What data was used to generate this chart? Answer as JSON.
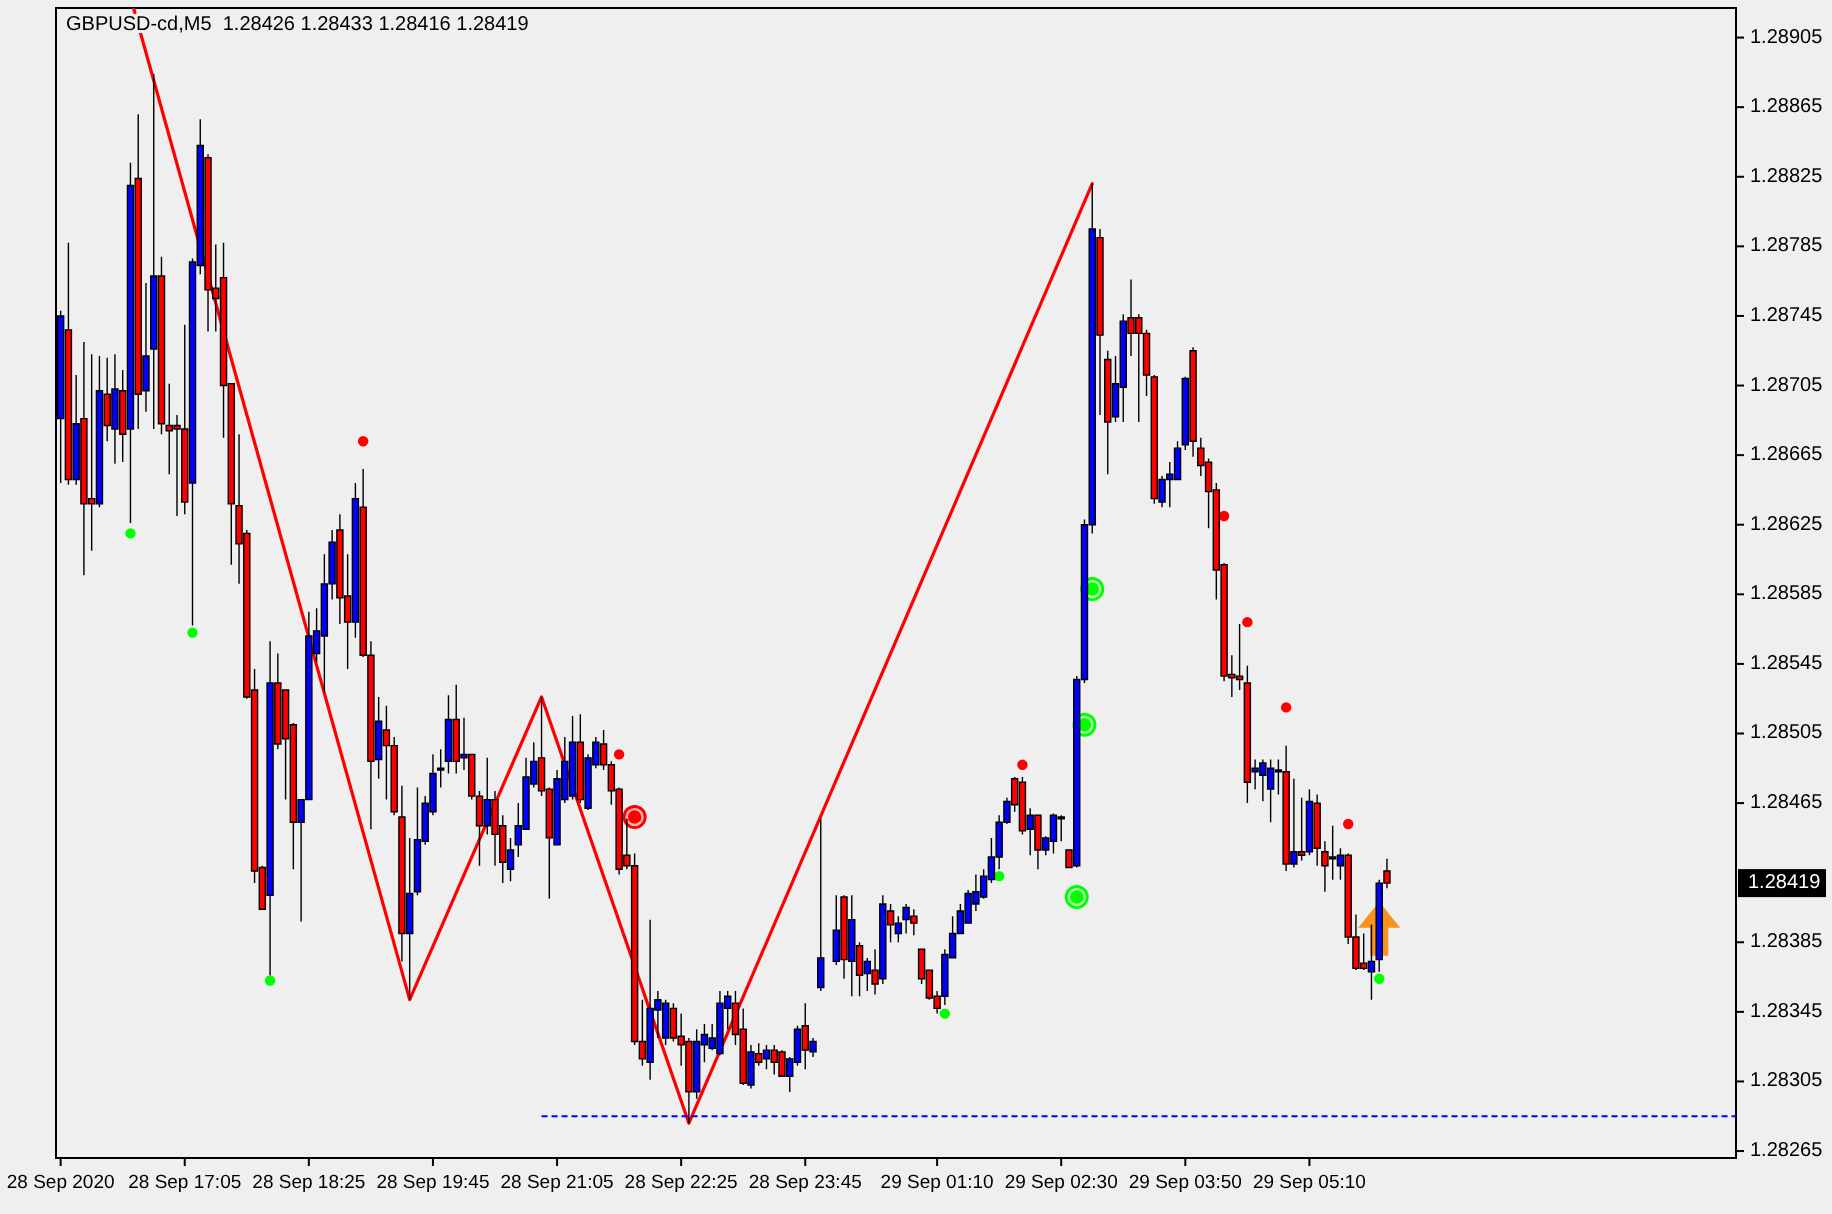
{
  "chart_data": {
    "type": "candlestick",
    "title": "GBPUSD-cd,M5  1.28426 1.28433 1.28416 1.28419",
    "x": [
      "2020-09-28T15:45",
      "2020-09-28T15:50",
      "2020-09-28T15:55",
      "2020-09-28T16:00",
      "2020-09-28T16:05",
      "2020-09-28T16:10",
      "2020-09-28T16:15",
      "2020-09-28T16:20",
      "2020-09-28T16:25",
      "2020-09-28T16:30",
      "2020-09-28T16:35",
      "2020-09-28T16:40",
      "2020-09-28T16:45",
      "2020-09-28T16:50",
      "2020-09-28T16:55",
      "2020-09-28T17:00",
      "2020-09-28T17:05",
      "2020-09-28T17:10",
      "2020-09-28T17:15",
      "2020-09-28T17:20",
      "2020-09-28T17:25",
      "2020-09-28T17:30",
      "2020-09-28T17:35",
      "2020-09-28T17:40",
      "2020-09-28T17:45",
      "2020-09-28T17:50",
      "2020-09-28T17:55",
      "2020-09-28T18:00",
      "2020-09-28T18:05",
      "2020-09-28T18:10",
      "2020-09-28T18:15",
      "2020-09-28T18:20",
      "2020-09-28T18:25",
      "2020-09-28T18:30",
      "2020-09-28T18:35",
      "2020-09-28T18:40",
      "2020-09-28T18:45",
      "2020-09-28T18:50",
      "2020-09-28T18:55",
      "2020-09-28T19:00",
      "2020-09-28T19:05",
      "2020-09-28T19:10",
      "2020-09-28T19:15",
      "2020-09-28T19:20",
      "2020-09-28T19:25",
      "2020-09-28T19:30",
      "2020-09-28T19:35",
      "2020-09-28T19:40",
      "2020-09-28T19:45",
      "2020-09-28T19:50",
      "2020-09-28T19:55",
      "2020-09-28T20:00",
      "2020-09-28T20:05",
      "2020-09-28T20:10",
      "2020-09-28T20:15",
      "2020-09-28T20:20",
      "2020-09-28T20:25",
      "2020-09-28T20:30",
      "2020-09-28T20:35",
      "2020-09-28T20:40",
      "2020-09-28T20:45",
      "2020-09-28T20:50",
      "2020-09-28T20:55",
      "2020-09-28T21:00",
      "2020-09-28T21:05",
      "2020-09-28T21:10",
      "2020-09-28T21:15",
      "2020-09-28T21:20",
      "2020-09-28T21:25",
      "2020-09-28T21:30",
      "2020-09-28T21:35",
      "2020-09-28T21:40",
      "2020-09-28T21:45",
      "2020-09-28T21:50",
      "2020-09-28T21:55",
      "2020-09-28T22:00",
      "2020-09-28T22:05",
      "2020-09-28T22:10",
      "2020-09-28T22:15",
      "2020-09-28T22:20",
      "2020-09-28T22:25",
      "2020-09-28T22:30",
      "2020-09-28T22:35",
      "2020-09-28T22:40",
      "2020-09-28T22:45",
      "2020-09-28T22:50",
      "2020-09-28T22:55",
      "2020-09-28T23:00",
      "2020-09-28T23:05",
      "2020-09-28T23:10",
      "2020-09-28T23:15",
      "2020-09-28T23:20",
      "2020-09-28T23:25",
      "2020-09-28T23:30",
      "2020-09-28T23:35",
      "2020-09-28T23:40",
      "2020-09-28T23:45",
      "2020-09-28T23:50",
      "2020-09-28T23:55",
      "2020-09-29T00:05",
      "2020-09-29T00:10",
      "2020-09-29T00:15",
      "2020-09-29T00:20",
      "2020-09-29T00:25",
      "2020-09-29T00:30",
      "2020-09-29T00:35",
      "2020-09-29T00:40",
      "2020-09-29T00:45",
      "2020-09-29T00:50",
      "2020-09-29T00:55",
      "2020-09-29T01:00",
      "2020-09-29T01:05",
      "2020-09-29T01:10",
      "2020-09-29T01:15",
      "2020-09-29T01:20",
      "2020-09-29T01:25",
      "2020-09-29T01:30",
      "2020-09-29T01:35",
      "2020-09-29T01:40",
      "2020-09-29T01:45",
      "2020-09-29T01:50",
      "2020-09-29T01:55",
      "2020-09-29T02:00",
      "2020-09-29T02:05",
      "2020-09-29T02:10",
      "2020-09-29T02:15",
      "2020-09-29T02:20",
      "2020-09-29T02:25",
      "2020-09-29T02:30",
      "2020-09-29T02:35",
      "2020-09-29T02:40",
      "2020-09-29T02:45",
      "2020-09-29T02:50",
      "2020-09-29T02:55",
      "2020-09-29T03:00",
      "2020-09-29T03:05",
      "2020-09-29T03:10",
      "2020-09-29T03:15",
      "2020-09-29T03:20",
      "2020-09-29T03:25",
      "2020-09-29T03:30",
      "2020-09-29T03:35",
      "2020-09-29T03:40",
      "2020-09-29T03:45",
      "2020-09-29T03:50",
      "2020-09-29T03:55",
      "2020-09-29T04:00",
      "2020-09-29T04:05",
      "2020-09-29T04:10",
      "2020-09-29T04:15",
      "2020-09-29T04:20",
      "2020-09-29T04:25",
      "2020-09-29T04:30",
      "2020-09-29T04:35",
      "2020-09-29T04:40",
      "2020-09-29T04:45",
      "2020-09-29T04:50",
      "2020-09-29T04:55",
      "2020-09-29T05:00",
      "2020-09-29T05:05",
      "2020-09-29T05:10",
      "2020-09-29T05:15",
      "2020-09-29T05:20",
      "2020-09-29T05:25",
      "2020-09-29T05:30",
      "2020-09-29T05:35",
      "2020-09-29T05:40",
      "2020-09-29T05:45",
      "2020-09-29T05:50",
      "2020-09-29T05:55",
      "2020-09-29T06:00"
    ],
    "ohlc": [
      [
        1.28686,
        1.28748,
        1.28649,
        1.28745
      ],
      [
        1.28737,
        1.28787,
        1.28648,
        1.28651
      ],
      [
        1.28651,
        1.28711,
        1.28648,
        1.28683
      ],
      [
        1.28686,
        1.2873,
        1.28596,
        1.28637
      ],
      [
        1.2864,
        1.28723,
        1.2861,
        1.28637
      ],
      [
        1.28637,
        1.28722,
        1.28635,
        1.28702
      ],
      [
        1.287,
        1.28721,
        1.28673,
        1.28682
      ],
      [
        1.2868,
        1.28723,
        1.2866,
        1.28703
      ],
      [
        1.28702,
        1.28714,
        1.28661,
        1.28677
      ],
      [
        1.2868,
        1.28833,
        1.28626,
        1.2882
      ],
      [
        1.28824,
        1.28861,
        1.2868,
        1.287
      ],
      [
        1.28702,
        1.28764,
        1.2869,
        1.28722
      ],
      [
        1.28726,
        1.28884,
        1.2868,
        1.28768
      ],
      [
        1.28768,
        1.28779,
        1.28677,
        1.28683
      ],
      [
        1.28682,
        1.28706,
        1.28654,
        1.28679
      ],
      [
        1.28682,
        1.28688,
        1.2863,
        1.2868
      ],
      [
        1.2868,
        1.2874,
        1.28631,
        1.28638
      ],
      [
        1.28649,
        1.28778,
        1.28567,
        1.28776
      ],
      [
        1.28774,
        1.28858,
        1.28769,
        1.28843
      ],
      [
        1.28836,
        1.28838,
        1.28736,
        1.2876
      ],
      [
        1.28761,
        1.28786,
        1.28736,
        1.28755
      ],
      [
        1.28767,
        1.28787,
        1.28675,
        1.28705
      ],
      [
        1.28706,
        1.28706,
        1.28602,
        1.28637
      ],
      [
        1.28636,
        1.28677,
        1.28591,
        1.28614
      ],
      [
        1.2862,
        1.28622,
        1.28525,
        1.28526
      ],
      [
        1.2853,
        1.28542,
        1.28419,
        1.28426
      ],
      [
        1.28428,
        1.28429,
        1.28404,
        1.28404
      ],
      [
        1.28412,
        1.28558,
        1.28366,
        1.28534
      ],
      [
        1.28534,
        1.28551,
        1.28496,
        1.28499
      ],
      [
        1.2853,
        1.2853,
        1.28467,
        1.28502
      ],
      [
        1.2851,
        1.28511,
        1.28427,
        1.28454
      ],
      [
        1.28454,
        1.28467,
        1.28397,
        1.28467
      ],
      [
        1.28467,
        1.28575,
        1.28467,
        1.28561
      ],
      [
        1.28551,
        1.28577,
        1.28546,
        1.28564
      ],
      [
        1.28561,
        1.28608,
        1.28529,
        1.28591
      ],
      [
        1.28591,
        1.28622,
        1.28582,
        1.28615
      ],
      [
        1.28622,
        1.28631,
        1.28568,
        1.28583
      ],
      [
        1.28584,
        1.28608,
        1.28542,
        1.28569
      ],
      [
        1.28569,
        1.28649,
        1.2856,
        1.2864
      ],
      [
        1.28635,
        1.28657,
        1.28549,
        1.2855
      ],
      [
        1.2855,
        1.28558,
        1.2845,
        1.28489
      ],
      [
        1.2849,
        1.28526,
        1.28479,
        1.28512
      ],
      [
        1.28507,
        1.28521,
        1.28467,
        1.28498
      ],
      [
        1.28498,
        1.28503,
        1.28458,
        1.2846
      ],
      [
        1.28457,
        1.28475,
        1.28374,
        1.2839
      ],
      [
        1.2839,
        1.28445,
        1.28352,
        1.28413
      ],
      [
        1.28414,
        1.28474,
        1.28412,
        1.28444
      ],
      [
        1.28443,
        1.28469,
        1.28441,
        1.28465
      ],
      [
        1.2846,
        1.28493,
        1.28458,
        1.28482
      ],
      [
        1.28484,
        1.28496,
        1.28474,
        1.28485
      ],
      [
        1.28489,
        1.28527,
        1.28482,
        1.28513
      ],
      [
        1.28513,
        1.28533,
        1.28482,
        1.28489
      ],
      [
        1.28491,
        1.28514,
        1.28484,
        1.28493
      ],
      [
        1.28493,
        1.28493,
        1.28467,
        1.28469
      ],
      [
        1.28469,
        1.28472,
        1.28429,
        1.28452
      ],
      [
        1.28452,
        1.28491,
        1.28447,
        1.28467
      ],
      [
        1.28467,
        1.28472,
        1.28429,
        1.28447
      ],
      [
        1.28452,
        1.28458,
        1.28419,
        1.28431
      ],
      [
        1.28427,
        1.28445,
        1.2842,
        1.28438
      ],
      [
        1.28441,
        1.28465,
        1.28434,
        1.28452
      ],
      [
        1.2845,
        1.28491,
        1.2845,
        1.2848
      ],
      [
        1.28476,
        1.285,
        1.28474,
        1.28489
      ],
      [
        1.28491,
        1.28526,
        1.28469,
        1.28472
      ],
      [
        1.28473,
        1.28474,
        1.2841,
        1.28445
      ],
      [
        1.28441,
        1.28484,
        1.28441,
        1.28479
      ],
      [
        1.28467,
        1.28503,
        1.28465,
        1.28489
      ],
      [
        1.28469,
        1.28515,
        1.28467,
        1.285
      ],
      [
        1.285,
        1.28516,
        1.28465,
        1.28467
      ],
      [
        1.28462,
        1.28493,
        1.28461,
        1.28491
      ],
      [
        1.28487,
        1.28503,
        1.28485,
        1.285
      ],
      [
        1.28499,
        1.28507,
        1.28484,
        1.28487
      ],
      [
        1.28487,
        1.28489,
        1.28464,
        1.28472
      ],
      [
        1.28473,
        1.28474,
        1.28424,
        1.28427
      ],
      [
        1.28435,
        1.28456,
        1.28427,
        1.28429
      ],
      [
        1.28429,
        1.28436,
        1.28326,
        1.28328
      ],
      [
        1.28328,
        1.28352,
        1.28314,
        1.28318
      ],
      [
        1.28316,
        1.28398,
        1.28306,
        1.28347
      ],
      [
        1.28346,
        1.28357,
        1.2833,
        1.28352
      ],
      [
        1.2833,
        1.28352,
        1.28326,
        1.2835
      ],
      [
        1.28347,
        1.2835,
        1.28328,
        1.2833
      ],
      [
        1.28331,
        1.28344,
        1.28314,
        1.28326
      ],
      [
        1.28328,
        1.2833,
        1.28281,
        1.28299
      ],
      [
        1.28299,
        1.28335,
        1.28295,
        1.28328
      ],
      [
        1.28326,
        1.28338,
        1.28316,
        1.28332
      ],
      [
        1.28324,
        1.28338,
        1.28323,
        1.2833
      ],
      [
        1.28321,
        1.28357,
        1.2832,
        1.2835
      ],
      [
        1.28347,
        1.28357,
        1.28335,
        1.28354
      ],
      [
        1.2835,
        1.28357,
        1.28326,
        1.28332
      ],
      [
        1.28335,
        1.28347,
        1.28303,
        1.28304
      ],
      [
        1.28303,
        1.28326,
        1.28301,
        1.28322
      ],
      [
        1.28321,
        1.28327,
        1.28314,
        1.28316
      ],
      [
        1.28318,
        1.28326,
        1.28312,
        1.28323
      ],
      [
        1.28323,
        1.28326,
        1.28309,
        1.28316
      ],
      [
        1.28322,
        1.28323,
        1.28308,
        1.28308
      ],
      [
        1.28308,
        1.28319,
        1.28299,
        1.28318
      ],
      [
        1.28316,
        1.28337,
        1.28314,
        1.28335
      ],
      [
        1.28337,
        1.2835,
        1.28312,
        1.28323
      ],
      [
        1.28322,
        1.2833,
        1.28319,
        1.28328
      ],
      [
        1.28359,
        1.28456,
        1.28357,
        1.28376
      ],
      [
        1.28374,
        1.28412,
        1.28372,
        1.28392
      ],
      [
        1.28411,
        1.28412,
        1.28364,
        1.28375
      ],
      [
        1.28374,
        1.28412,
        1.28354,
        1.28398
      ],
      [
        1.28383,
        1.28385,
        1.28354,
        1.28366
      ],
      [
        1.28367,
        1.28376,
        1.28357,
        1.28374
      ],
      [
        1.28369,
        1.28381,
        1.28355,
        1.28361
      ],
      [
        1.28364,
        1.28412,
        1.28361,
        1.28407
      ],
      [
        1.28403,
        1.28407,
        1.28385,
        1.28395
      ],
      [
        1.2839,
        1.284,
        1.28385,
        1.28396
      ],
      [
        1.28398,
        1.28407,
        1.2839,
        1.28405
      ],
      [
        1.284,
        1.28404,
        1.28389,
        1.28396
      ],
      [
        1.28381,
        1.28381,
        1.28361,
        1.28364
      ],
      [
        1.28369,
        1.28369,
        1.28352,
        1.28353
      ],
      [
        1.28354,
        1.28357,
        1.28344,
        1.28347
      ],
      [
        1.28354,
        1.28381,
        1.28349,
        1.28378
      ],
      [
        1.28376,
        1.284,
        1.28376,
        1.2839
      ],
      [
        1.2839,
        1.28407,
        1.2839,
        1.28403
      ],
      [
        1.28396,
        1.28415,
        1.28396,
        1.28413
      ],
      [
        1.28407,
        1.28424,
        1.28403,
        1.28414
      ],
      [
        1.28411,
        1.28427,
        1.2841,
        1.28423
      ],
      [
        1.28421,
        1.28445,
        1.28419,
        1.28434
      ],
      [
        1.28434,
        1.28458,
        1.28427,
        1.28454
      ],
      [
        1.28454,
        1.28468,
        1.28453,
        1.28466
      ],
      [
        1.28479,
        1.2848,
        1.2846,
        1.28464
      ],
      [
        1.28477,
        1.2848,
        1.28447,
        1.28449
      ],
      [
        1.2845,
        1.28462,
        1.28435,
        1.28458
      ],
      [
        1.28458,
        1.28458,
        1.28427,
        1.28438
      ],
      [
        1.28438,
        1.28446,
        1.28435,
        1.28445
      ],
      [
        1.28443,
        1.28459,
        1.28436,
        1.28458
      ],
      [
        1.28456,
        1.28458,
        1.28443,
        1.28457
      ],
      [
        1.28438,
        1.28438,
        1.28428,
        1.28428
      ],
      [
        1.28429,
        1.28538,
        1.28428,
        1.28536
      ],
      [
        1.28536,
        1.28628,
        1.28534,
        1.28625
      ],
      [
        1.28625,
        1.28821,
        1.2862,
        1.28795
      ],
      [
        1.2879,
        1.28795,
        1.28688,
        1.28734
      ],
      [
        1.2872,
        1.28725,
        1.28654,
        1.28684
      ],
      [
        1.28687,
        1.28722,
        1.28684,
        1.28706
      ],
      [
        1.28704,
        1.28746,
        1.28684,
        1.28742
      ],
      [
        1.28744,
        1.28766,
        1.28722,
        1.28735
      ],
      [
        1.28744,
        1.28746,
        1.28684,
        1.28735
      ],
      [
        1.28735,
        1.28737,
        1.28699,
        1.28711
      ],
      [
        1.2871,
        1.28711,
        1.28637,
        1.2864
      ],
      [
        1.28638,
        1.28653,
        1.28635,
        1.28651
      ],
      [
        1.28651,
        1.28661,
        1.28635,
        1.28654
      ],
      [
        1.28651,
        1.28673,
        1.28651,
        1.28669
      ],
      [
        1.28671,
        1.2871,
        1.28668,
        1.28709
      ],
      [
        1.28725,
        1.28727,
        1.28664,
        1.28673
      ],
      [
        1.28669,
        1.28675,
        1.28653,
        1.28659
      ],
      [
        1.28661,
        1.28663,
        1.28623,
        1.28644
      ],
      [
        1.28645,
        1.28649,
        1.28582,
        1.28599
      ],
      [
        1.28602,
        1.28603,
        1.28535,
        1.28538
      ],
      [
        1.28539,
        1.2855,
        1.28526,
        1.28537
      ],
      [
        1.28538,
        1.28568,
        1.2853,
        1.28536
      ],
      [
        1.28534,
        1.28544,
        1.28465,
        1.28477
      ],
      [
        1.28483,
        1.2849,
        1.28473,
        1.28485
      ],
      [
        1.28481,
        1.2849,
        1.28466,
        1.28488
      ],
      [
        1.28473,
        1.2849,
        1.28454,
        1.28485
      ],
      [
        1.28483,
        1.2849,
        1.2847,
        1.28484
      ],
      [
        1.28483,
        1.28498,
        1.28426,
        1.2843
      ],
      [
        1.2843,
        1.28479,
        1.28428,
        1.28437
      ],
      [
        1.28437,
        1.28468,
        1.28432,
        1.28435
      ],
      [
        1.28437,
        1.28473,
        1.28435,
        1.28466
      ],
      [
        1.28465,
        1.2847,
        1.28429,
        1.28439
      ],
      [
        1.28437,
        1.28443,
        1.28414,
        1.28429
      ],
      [
        1.28434,
        1.28452,
        1.28421,
        1.28433
      ],
      [
        1.28429,
        1.28439,
        1.28421,
        1.28435
      ],
      [
        1.28435,
        1.28436,
        1.28384,
        1.28388
      ],
      [
        1.28388,
        1.28401,
        1.28369,
        1.2837
      ],
      [
        1.28373,
        1.2839,
        1.28369,
        1.2837
      ],
      [
        1.28368,
        1.28395,
        1.28352,
        1.28374
      ],
      [
        1.28375,
        1.28421,
        1.28368,
        1.28419
      ],
      [
        1.28426,
        1.28433,
        1.28416,
        1.28419
      ]
    ],
    "colors": [
      "#0000ff",
      "#ff0000",
      "#0000ff",
      "#ff0000",
      "#ff0000",
      "#0000ff",
      "#ff0000",
      "#0000ff",
      "#ff0000",
      "#0000ff",
      "#ff0000",
      "#0000ff",
      "#0000ff",
      "#ff0000",
      "#ff0000",
      "#ff0000",
      "#ff0000",
      "#0000ff",
      "#0000ff",
      "#ff0000",
      "#ff0000",
      "#ff0000",
      "#ff0000",
      "#ff0000",
      "#ff0000",
      "#ff0000",
      "#ff0000",
      "#0000ff",
      "#ff0000",
      "#ff0000",
      "#ff0000",
      "#0000ff",
      "#0000ff",
      "#0000ff",
      "#0000ff",
      "#0000ff",
      "#ff0000",
      "#ff0000",
      "#0000ff",
      "#ff0000",
      "#ff0000",
      "#0000ff",
      "#ff0000",
      "#ff0000",
      "#ff0000",
      "#0000ff",
      "#0000ff",
      "#0000ff",
      "#0000ff",
      "#0000ff",
      "#0000ff",
      "#ff0000",
      "#0000ff",
      "#ff0000",
      "#ff0000",
      "#0000ff",
      "#ff0000",
      "#ff0000",
      "#0000ff",
      "#0000ff",
      "#0000ff",
      "#0000ff",
      "#ff0000",
      "#ff0000",
      "#0000ff",
      "#0000ff",
      "#0000ff",
      "#ff0000",
      "#0000ff",
      "#0000ff",
      "#ff0000",
      "#ff0000",
      "#ff0000",
      "#ff0000",
      "#ff0000",
      "#ff0000",
      "#0000ff",
      "#0000ff",
      "#0000ff",
      "#ff0000",
      "#ff0000",
      "#ff0000",
      "#0000ff",
      "#0000ff",
      "#0000ff",
      "#0000ff",
      "#0000ff",
      "#ff0000",
      "#ff0000",
      "#0000ff",
      "#ff0000",
      "#0000ff",
      "#ff0000",
      "#ff0000",
      "#0000ff",
      "#0000ff",
      "#ff0000",
      "#0000ff",
      "#0000ff",
      "#0000ff",
      "#ff0000",
      "#0000ff",
      "#ff0000",
      "#0000ff",
      "#ff0000",
      "#0000ff",
      "#ff0000",
      "#0000ff",
      "#0000ff",
      "#ff0000",
      "#ff0000",
      "#ff0000",
      "#ff0000",
      "#0000ff",
      "#0000ff",
      "#0000ff",
      "#0000ff",
      "#0000ff",
      "#0000ff",
      "#0000ff",
      "#0000ff",
      "#0000ff",
      "#ff0000",
      "#ff0000",
      "#0000ff",
      "#ff0000",
      "#0000ff",
      "#0000ff",
      "#0000ff",
      "#ff0000",
      "#0000ff",
      "#0000ff",
      "#0000ff",
      "#ff0000",
      "#ff0000",
      "#0000ff",
      "#0000ff",
      "#ff0000",
      "#ff0000",
      "#ff0000",
      "#ff0000",
      "#0000ff",
      "#0000ff",
      "#0000ff",
      "#0000ff",
      "#ff0000",
      "#ff0000",
      "#ff0000",
      "#ff0000",
      "#ff0000",
      "#ff0000",
      "#ff0000",
      "#ff0000",
      "#0000ff",
      "#0000ff",
      "#0000ff",
      "#0000ff",
      "#ff0000",
      "#0000ff",
      "#ff0000",
      "#0000ff",
      "#ff0000",
      "#ff0000",
      "#ff0000",
      "#0000ff",
      "#ff0000",
      "#ff0000",
      "#ff0000",
      "#0000ff",
      "#0000ff",
      "#ff0000"
    ],
    "xlim": [
      "2020-09-28T15:42",
      "2020-09-29T09:45"
    ],
    "xticks": [
      {
        "value": "2020-09-28T15:45",
        "label": "28 Sep 2020"
      },
      {
        "value": "2020-09-28T17:05",
        "label": "28 Sep 17:05"
      },
      {
        "value": "2020-09-28T18:25",
        "label": "28 Sep 18:25"
      },
      {
        "value": "2020-09-28T19:45",
        "label": "28 Sep 19:45"
      },
      {
        "value": "2020-09-28T21:05",
        "label": "28 Sep 21:05"
      },
      {
        "value": "2020-09-28T22:25",
        "label": "28 Sep 22:25"
      },
      {
        "value": "2020-09-28T23:45",
        "label": "28 Sep 23:45"
      },
      {
        "value": "2020-09-29T01:10",
        "label": "29 Sep 01:10"
      },
      {
        "value": "2020-09-29T02:30",
        "label": "29 Sep 02:30"
      },
      {
        "value": "2020-09-29T03:50",
        "label": "29 Sep 03:50"
      },
      {
        "value": "2020-09-29T05:10",
        "label": "29 Sep 05:10"
      }
    ],
    "ylim": [
      1.28261,
      1.28922
    ],
    "yticks": [
      1.28265,
      1.28305,
      1.28345,
      1.28385,
      1.28465,
      1.28505,
      1.28545,
      1.28585,
      1.28625,
      1.28665,
      1.28705,
      1.28745,
      1.28785,
      1.28825,
      1.28865,
      1.28905
    ],
    "series": [
      {
        "type": "line",
        "color": "#ff0000",
        "x": [
          "2020-09-28T16:32",
          "2020-09-28T19:30",
          "2020-09-28T20:55",
          "2020-09-28T22:30",
          "2020-09-29T02:50"
        ],
        "values": [
          1.28922,
          1.28352,
          1.28526,
          1.28281,
          1.28821
        ]
      },
      {
        "type": "line",
        "color": "#0000ff",
        "line_style": "dashed",
        "x": [
          "2020-09-28T20:55",
          "2020-09-29T09:45"
        ],
        "values": [
          1.28285,
          1.28285
        ]
      },
      {
        "type": "scatter",
        "color": "#ff0000",
        "marker": "circle",
        "x": [
          "2020-09-28T19:00",
          "2020-09-28T21:45",
          "2020-09-29T02:05",
          "2020-09-29T04:15",
          "2020-09-29T04:30",
          "2020-09-29T04:55",
          "2020-09-29T05:35"
        ],
        "values": [
          1.28673,
          1.28493,
          1.28487,
          1.2863,
          1.28569,
          1.2852,
          1.28453
        ]
      },
      {
        "type": "scatter",
        "color": "#00ff00",
        "marker": "circle",
        "x": [
          "2020-09-28T16:30",
          "2020-09-28T17:10",
          "2020-09-28T18:00",
          "2020-09-29T01:15",
          "2020-09-29T01:50",
          "2020-09-29T05:55"
        ],
        "values": [
          1.2862,
          1.28563,
          1.28363,
          1.28344,
          1.28423,
          1.28364
        ]
      },
      {
        "type": "bubble",
        "color": "#ff0000",
        "x": [
          "2020-09-28T21:55"
        ],
        "values": [
          1.28457
        ],
        "sizes": [
          1
        ]
      },
      {
        "type": "bubble",
        "color": "#00ff00",
        "x": [
          "2020-09-29T02:40",
          "2020-09-29T02:45",
          "2020-09-29T02:50"
        ],
        "values": [
          1.28411,
          1.2851,
          1.28588
        ],
        "sizes": [
          1,
          1,
          1
        ]
      }
    ],
    "annotations": [
      {
        "text": "1.28419",
        "y": 1.28419
      }
    ]
  }
}
